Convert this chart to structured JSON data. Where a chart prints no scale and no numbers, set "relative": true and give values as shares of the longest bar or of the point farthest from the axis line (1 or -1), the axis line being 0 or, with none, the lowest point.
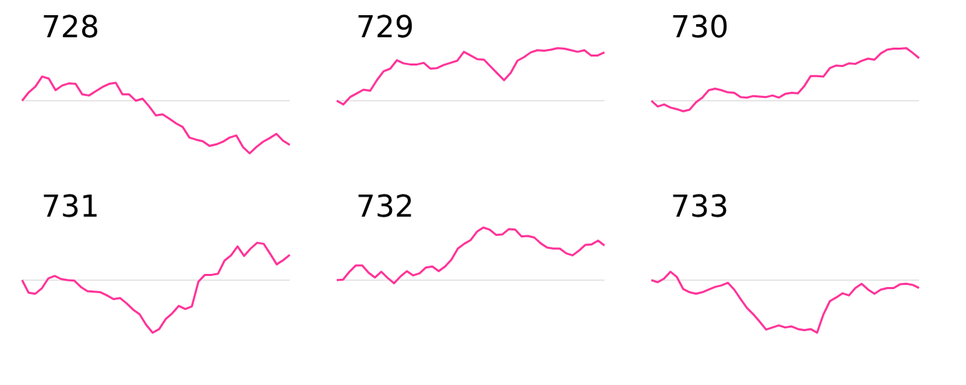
{
  "chart_data": [
    {
      "type": "line",
      "title": "728",
      "relative": true,
      "color": "#ff3399",
      "categories": [
        null,
        null,
        null,
        null,
        null,
        null,
        null,
        null,
        null,
        null,
        null,
        null,
        null,
        null,
        null,
        null,
        null,
        null,
        null,
        null,
        null,
        null,
        null,
        null,
        null,
        null,
        null,
        null,
        null,
        null,
        null,
        null,
        null,
        null,
        null,
        null,
        null,
        null,
        null,
        null,
        null
      ],
      "values": [
        0,
        0.16,
        0.27,
        0.46,
        0.42,
        0.2,
        0.29,
        0.33,
        0.32,
        0.12,
        0.1,
        0.18,
        0.26,
        0.32,
        0.34,
        0.12,
        0.12,
        0,
        0.04,
        -0.11,
        -0.28,
        -0.26,
        -0.34,
        -0.43,
        -0.5,
        -0.7,
        -0.74,
        -0.77,
        -0.86,
        -0.83,
        -0.78,
        -0.7,
        -0.66,
        -0.88,
        -1,
        -0.88,
        -0.78,
        -0.71,
        -0.63,
        -0.76,
        -0.84
      ]
    },
    {
      "type": "line",
      "title": "729",
      "relative": true,
      "color": "#ff3399",
      "categories": [
        null,
        null,
        null,
        null,
        null,
        null,
        null,
        null,
        null,
        null,
        null,
        null,
        null,
        null,
        null,
        null,
        null,
        null,
        null,
        null,
        null,
        null,
        null,
        null,
        null,
        null,
        null,
        null,
        null,
        null,
        null,
        null,
        null,
        null,
        null,
        null,
        null,
        null,
        null,
        null,
        null
      ],
      "values": [
        0,
        -0.07,
        0.07,
        0.14,
        0.21,
        0.19,
        0.39,
        0.56,
        0.61,
        0.77,
        0.71,
        0.69,
        0.69,
        0.72,
        0.61,
        0.62,
        0.68,
        0.72,
        0.76,
        0.93,
        0.86,
        0.79,
        0.78,
        0.65,
        0.52,
        0.39,
        0.53,
        0.76,
        0.83,
        0.92,
        0.96,
        0.95,
        0.97,
        1,
        0.99,
        0.96,
        0.93,
        0.96,
        0.86,
        0.86,
        0.92
      ]
    },
    {
      "type": "line",
      "title": "730",
      "relative": true,
      "color": "#ff3399",
      "categories": [
        null,
        null,
        null,
        null,
        null,
        null,
        null,
        null,
        null,
        null,
        null,
        null,
        null,
        null,
        null,
        null,
        null,
        null,
        null,
        null,
        null,
        null,
        null,
        null,
        null,
        null,
        null,
        null,
        null,
        null,
        null,
        null,
        null,
        null,
        null,
        null,
        null,
        null,
        null,
        null,
        null,
        null,
        null
      ],
      "values": [
        0,
        -0.11,
        -0.07,
        -0.13,
        -0.16,
        -0.2,
        -0.17,
        -0.03,
        0.06,
        0.2,
        0.23,
        0.2,
        0.16,
        0.15,
        0.07,
        0.06,
        0.09,
        0.08,
        0.07,
        0.1,
        0.06,
        0.13,
        0.15,
        0.14,
        0.28,
        0.47,
        0.47,
        0.46,
        0.62,
        0.67,
        0.66,
        0.71,
        0.7,
        0.76,
        0.8,
        0.78,
        0.9,
        0.97,
        0.99,
        0.99,
        1,
        0.91,
        0.81
      ]
    },
    {
      "type": "line",
      "title": "731",
      "relative": true,
      "color": "#ff3399",
      "categories": [
        null,
        null,
        null,
        null,
        null,
        null,
        null,
        null,
        null,
        null,
        null,
        null,
        null,
        null,
        null,
        null,
        null,
        null,
        null,
        null,
        null,
        null,
        null,
        null,
        null,
        null,
        null,
        null,
        null,
        null,
        null,
        null,
        null,
        null,
        null,
        null,
        null,
        null,
        null,
        null,
        null,
        null
      ],
      "values": [
        0,
        -0.24,
        -0.26,
        -0.16,
        0.03,
        0.08,
        0.02,
        0,
        -0.01,
        -0.13,
        -0.21,
        -0.22,
        -0.23,
        -0.29,
        -0.36,
        -0.34,
        -0.44,
        -0.56,
        -0.65,
        -0.85,
        -1,
        -0.93,
        -0.74,
        -0.63,
        -0.49,
        -0.55,
        -0.5,
        -0.03,
        0.1,
        0.1,
        0.12,
        0.37,
        0.47,
        0.64,
        0.46,
        0.6,
        0.71,
        0.69,
        0.5,
        0.3,
        0.38,
        0.48
      ]
    },
    {
      "type": "line",
      "title": "732",
      "relative": true,
      "color": "#ff3399",
      "categories": [
        null,
        null,
        null,
        null,
        null,
        null,
        null,
        null,
        null,
        null,
        null,
        null,
        null,
        null,
        null,
        null,
        null,
        null,
        null,
        null,
        null,
        null,
        null,
        null,
        null,
        null,
        null,
        null,
        null,
        null,
        null,
        null,
        null,
        null,
        null,
        null,
        null,
        null,
        null,
        null,
        null,
        null,
        null
      ],
      "values": [
        0,
        0.01,
        0.16,
        0.28,
        0.28,
        0.14,
        0.05,
        0.16,
        0.04,
        -0.06,
        0.07,
        0.17,
        0.09,
        0.13,
        0.24,
        0.26,
        0.17,
        0.26,
        0.39,
        0.6,
        0.69,
        0.76,
        0.92,
        1,
        0.96,
        0.86,
        0.87,
        0.97,
        0.96,
        0.83,
        0.84,
        0.81,
        0.7,
        0.62,
        0.6,
        0.6,
        0.51,
        0.47,
        0.56,
        0.67,
        0.68,
        0.75,
        0.66
      ]
    },
    {
      "type": "line",
      "title": "733",
      "relative": true,
      "color": "#ff3399",
      "categories": [
        null,
        null,
        null,
        null,
        null,
        null,
        null,
        null,
        null,
        null,
        null,
        null,
        null,
        null,
        null,
        null,
        null,
        null,
        null,
        null,
        null,
        null,
        null,
        null,
        null,
        null,
        null,
        null,
        null,
        null,
        null,
        null,
        null,
        null,
        null,
        null,
        null,
        null,
        null,
        null,
        null,
        null,
        null
      ],
      "values": [
        0,
        -0.04,
        0.03,
        0.16,
        0.06,
        -0.17,
        -0.23,
        -0.26,
        -0.23,
        -0.18,
        -0.13,
        -0.1,
        -0.05,
        -0.18,
        -0.36,
        -0.53,
        -0.65,
        -0.79,
        -0.94,
        -0.9,
        -0.86,
        -0.9,
        -0.88,
        -0.93,
        -0.95,
        -0.93,
        -1,
        -0.65,
        -0.4,
        -0.33,
        -0.25,
        -0.29,
        -0.15,
        -0.07,
        -0.18,
        -0.26,
        -0.18,
        -0.15,
        -0.15,
        -0.08,
        -0.07,
        -0.09,
        -0.15
      ]
    }
  ]
}
